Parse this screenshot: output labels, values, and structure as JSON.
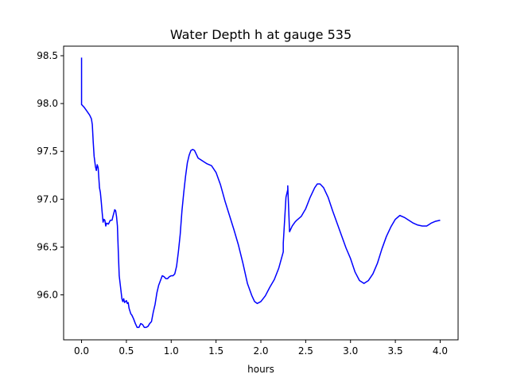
{
  "chart_data": {
    "type": "line",
    "title": "Water Depth h at gauge 535",
    "xlabel": "hours",
    "ylabel": "",
    "xlim": [
      -0.2,
      4.2
    ],
    "ylim": [
      95.53,
      98.6
    ],
    "xticks": [
      0.0,
      0.5,
      1.0,
      1.5,
      2.0,
      2.5,
      3.0,
      3.5,
      4.0
    ],
    "xtick_labels": [
      "0.0",
      "0.5",
      "1.0",
      "1.5",
      "2.0",
      "2.5",
      "3.0",
      "3.5",
      "4.0"
    ],
    "yticks": [
      96.0,
      96.5,
      97.0,
      97.5,
      98.0,
      98.5
    ],
    "ytick_labels": [
      "96.0",
      "96.5",
      "97.0",
      "97.5",
      "98.0",
      "98.5"
    ],
    "grid": false,
    "series": [
      {
        "color": "#0000ff",
        "x": [
          0.0,
          0.0,
          0.01,
          0.03,
          0.06,
          0.09,
          0.11,
          0.12,
          0.13,
          0.14,
          0.155,
          0.165,
          0.175,
          0.185,
          0.2,
          0.21,
          0.22,
          0.23,
          0.24,
          0.25,
          0.26,
          0.27,
          0.28,
          0.3,
          0.32,
          0.34,
          0.35,
          0.37,
          0.38,
          0.39,
          0.4,
          0.41,
          0.42,
          0.43,
          0.44,
          0.45,
          0.46,
          0.47,
          0.48,
          0.5,
          0.51,
          0.52,
          0.53,
          0.55,
          0.56,
          0.58,
          0.6,
          0.62,
          0.64,
          0.66,
          0.68,
          0.7,
          0.72,
          0.74,
          0.76,
          0.78,
          0.8,
          0.82,
          0.84,
          0.86,
          0.88,
          0.9,
          0.92,
          0.94,
          0.96,
          0.98,
          1.0,
          1.02,
          1.04,
          1.06,
          1.08,
          1.1,
          1.12,
          1.14,
          1.16,
          1.18,
          1.2,
          1.22,
          1.24,
          1.26,
          1.28,
          1.3,
          1.35,
          1.4,
          1.45,
          1.5,
          1.55,
          1.6,
          1.65,
          1.7,
          1.75,
          1.8,
          1.85,
          1.9,
          1.93,
          1.96,
          2.0,
          2.05,
          2.1,
          2.15,
          2.2,
          2.25,
          2.25,
          2.28,
          2.3,
          2.3,
          2.32,
          2.35,
          2.38,
          2.4,
          2.45,
          2.5,
          2.55,
          2.6,
          2.63,
          2.66,
          2.7,
          2.75,
          2.8,
          2.85,
          2.9,
          2.95,
          3.0,
          3.05,
          3.1,
          3.15,
          3.2,
          3.25,
          3.3,
          3.35,
          3.4,
          3.45,
          3.5,
          3.55,
          3.6,
          3.65,
          3.7,
          3.75,
          3.8,
          3.85,
          3.9,
          3.95,
          4.0
        ],
        "y": [
          98.48,
          97.99,
          97.98,
          97.96,
          97.92,
          97.88,
          97.84,
          97.78,
          97.6,
          97.45,
          97.34,
          97.3,
          97.36,
          97.33,
          97.12,
          97.07,
          96.97,
          96.86,
          96.76,
          96.79,
          96.78,
          96.72,
          96.75,
          96.74,
          96.78,
          96.78,
          96.82,
          96.89,
          96.88,
          96.82,
          96.72,
          96.45,
          96.2,
          96.12,
          96.04,
          95.96,
          95.93,
          95.96,
          95.92,
          95.94,
          95.91,
          95.92,
          95.86,
          95.8,
          95.79,
          95.75,
          95.7,
          95.66,
          95.66,
          95.7,
          95.69,
          95.66,
          95.66,
          95.67,
          95.7,
          95.72,
          95.82,
          95.9,
          96.02,
          96.1,
          96.15,
          96.2,
          96.19,
          96.17,
          96.17,
          96.19,
          96.2,
          96.2,
          96.22,
          96.3,
          96.45,
          96.63,
          96.88,
          97.07,
          97.24,
          97.38,
          97.46,
          97.51,
          97.52,
          97.51,
          97.47,
          97.43,
          97.4,
          97.37,
          97.35,
          97.28,
          97.15,
          96.98,
          96.83,
          96.68,
          96.52,
          96.33,
          96.12,
          95.99,
          95.93,
          95.91,
          95.93,
          95.99,
          96.08,
          96.16,
          96.28,
          96.45,
          96.54,
          97.02,
          97.1,
          97.14,
          96.66,
          96.72,
          96.76,
          96.78,
          96.82,
          96.9,
          97.02,
          97.12,
          97.16,
          97.16,
          97.12,
          97.02,
          96.88,
          96.75,
          96.62,
          96.49,
          96.38,
          96.24,
          96.15,
          96.12,
          96.15,
          96.22,
          96.33,
          96.48,
          96.61,
          96.71,
          96.79,
          96.83,
          96.81,
          96.78,
          96.75,
          96.73,
          96.72,
          96.72,
          96.75,
          96.77,
          96.78
        ]
      }
    ]
  }
}
